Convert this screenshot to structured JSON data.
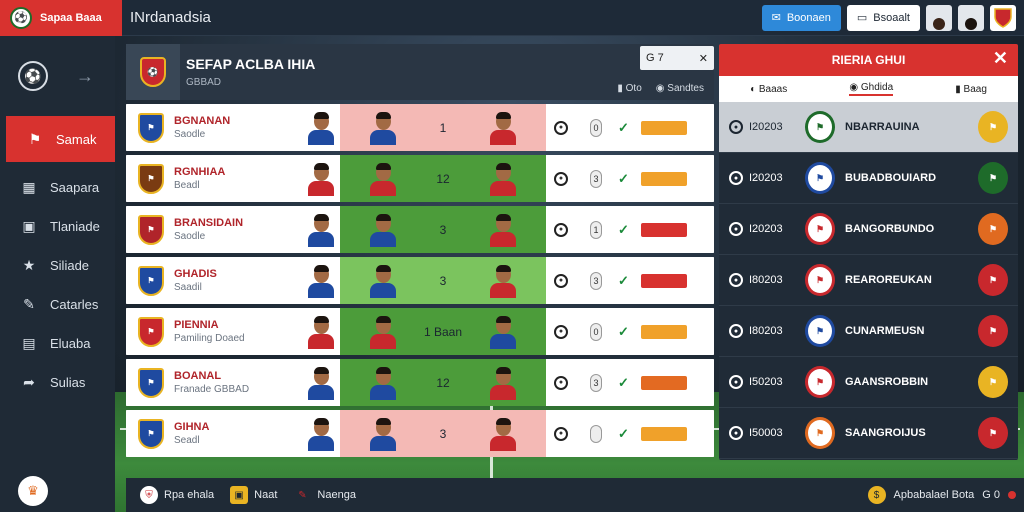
{
  "topbar": {
    "brand": "Sapaa Baaa",
    "title": "INrdanadsia",
    "primary_button": "Boonaen",
    "secondary_button": "Bsoaalt"
  },
  "sidebar": {
    "items": [
      {
        "label": "Samak",
        "icon": "flag-icon",
        "active": true
      },
      {
        "label": "Saapara",
        "icon": "grid-icon"
      },
      {
        "label": "Tlaniade",
        "icon": "card-icon"
      },
      {
        "label": "Siliade",
        "icon": "star-icon"
      },
      {
        "label": "Catarles",
        "icon": "pen-icon"
      },
      {
        "label": "Eluaba",
        "icon": "book-icon"
      },
      {
        "label": "Sulias",
        "icon": "share-icon"
      }
    ]
  },
  "center": {
    "title": "SEFAP ACLBA IHIA",
    "subtitle": "GBBAD",
    "search_value": "G 7",
    "filters": [
      "Oto",
      "Sandtes"
    ]
  },
  "rows": [
    {
      "name": "BGNANAN",
      "sub": "Saodle",
      "score": "1",
      "crest_color": "#1f4aa0",
      "row_bg": "#f4b9b5",
      "bar_color": "#f0a12a",
      "home_kit": "#1f4aa0",
      "away_kit": "#c8282d",
      "pill": "0"
    },
    {
      "name": "RGNHIAA",
      "sub": "Beadl",
      "score": "12",
      "crest_color": "#7a3b12",
      "row_bg": "#4c9c3a",
      "bar_color": "#f0a12a",
      "home_kit": "#c8282d",
      "away_kit": "#c8282d",
      "pill": "3"
    },
    {
      "name": "BRANSIDAIN",
      "sub": "Saodle",
      "score": "3",
      "crest_color": "#b0242a",
      "row_bg": "#4c9c3a",
      "bar_color": "#d8322f",
      "home_kit": "#1f4aa0",
      "away_kit": "#c8282d",
      "pill": "1"
    },
    {
      "name": "GHADIS",
      "sub": "Saadil",
      "score": "3",
      "crest_color": "#1f4aa0",
      "row_bg": "#7bc45e",
      "bar_color": "#d8322f",
      "home_kit": "#1f4aa0",
      "away_kit": "#c8282d",
      "pill": "3"
    },
    {
      "name": "PIENNIA",
      "sub": "Pamiling",
      "sub_extra": "Doaed",
      "score": "1 Baan",
      "crest_color": "#c8282d",
      "row_bg": "#4c9c3a",
      "bar_color": "#f0a12a",
      "home_kit": "#c8282d",
      "away_kit": "#1f4aa0",
      "pill": "0"
    },
    {
      "name": "BOANAL",
      "sub": "Franade",
      "sub_extra": "GBBAD",
      "score": "12",
      "crest_color": "#1f4aa0",
      "row_bg": "#4c9c3a",
      "bar_color": "#e36a22",
      "home_kit": "#1f4aa0",
      "away_kit": "#c8282d",
      "pill": "3"
    },
    {
      "name": "GIHNA",
      "sub": "Seadl",
      "score": "3",
      "crest_color": "#1f4aa0",
      "row_bg": "#f4b9b5",
      "bar_color": "#f0a12a",
      "home_kit": "#1f4aa0",
      "away_kit": "#c8282d",
      "pill": ""
    }
  ],
  "right": {
    "title": "RIERIA GHUI",
    "tabs": [
      "Baaas",
      "Ghdida",
      "Baag"
    ],
    "matches": [
      {
        "id": "I20203",
        "name": "NBARRAUINA",
        "crest_color": "#1e6b2a",
        "badge_color": "#e9b423"
      },
      {
        "id": "I20203",
        "name": "BUBADBOUIARD",
        "crest_color": "#1f4aa0",
        "badge_color": "#1e6b2a"
      },
      {
        "id": "I20203",
        "name": "BANGORBUNDO",
        "crest_color": "#c8282d",
        "badge_color": "#e06a20"
      },
      {
        "id": "I80203",
        "name": "REAROREUKAN",
        "crest_color": "#c8282d",
        "badge_color": "#c8282d"
      },
      {
        "id": "I80203",
        "name": "CUNARMEUSN",
        "crest_color": "#1f4aa0",
        "badge_color": "#c8282d"
      },
      {
        "id": "I50203",
        "name": "GAANSROBBIN",
        "crest_color": "#c8282d",
        "badge_color": "#e9b423"
      },
      {
        "id": "I50003",
        "name": "SAANGROIJUS",
        "crest_color": "#e06a20",
        "badge_color": "#c8282d"
      }
    ]
  },
  "bottombar": {
    "items": [
      "Rpa ehala",
      "Naat",
      "Naenga"
    ],
    "status": "Apbabalael Bota",
    "status_extra": "G 0"
  }
}
